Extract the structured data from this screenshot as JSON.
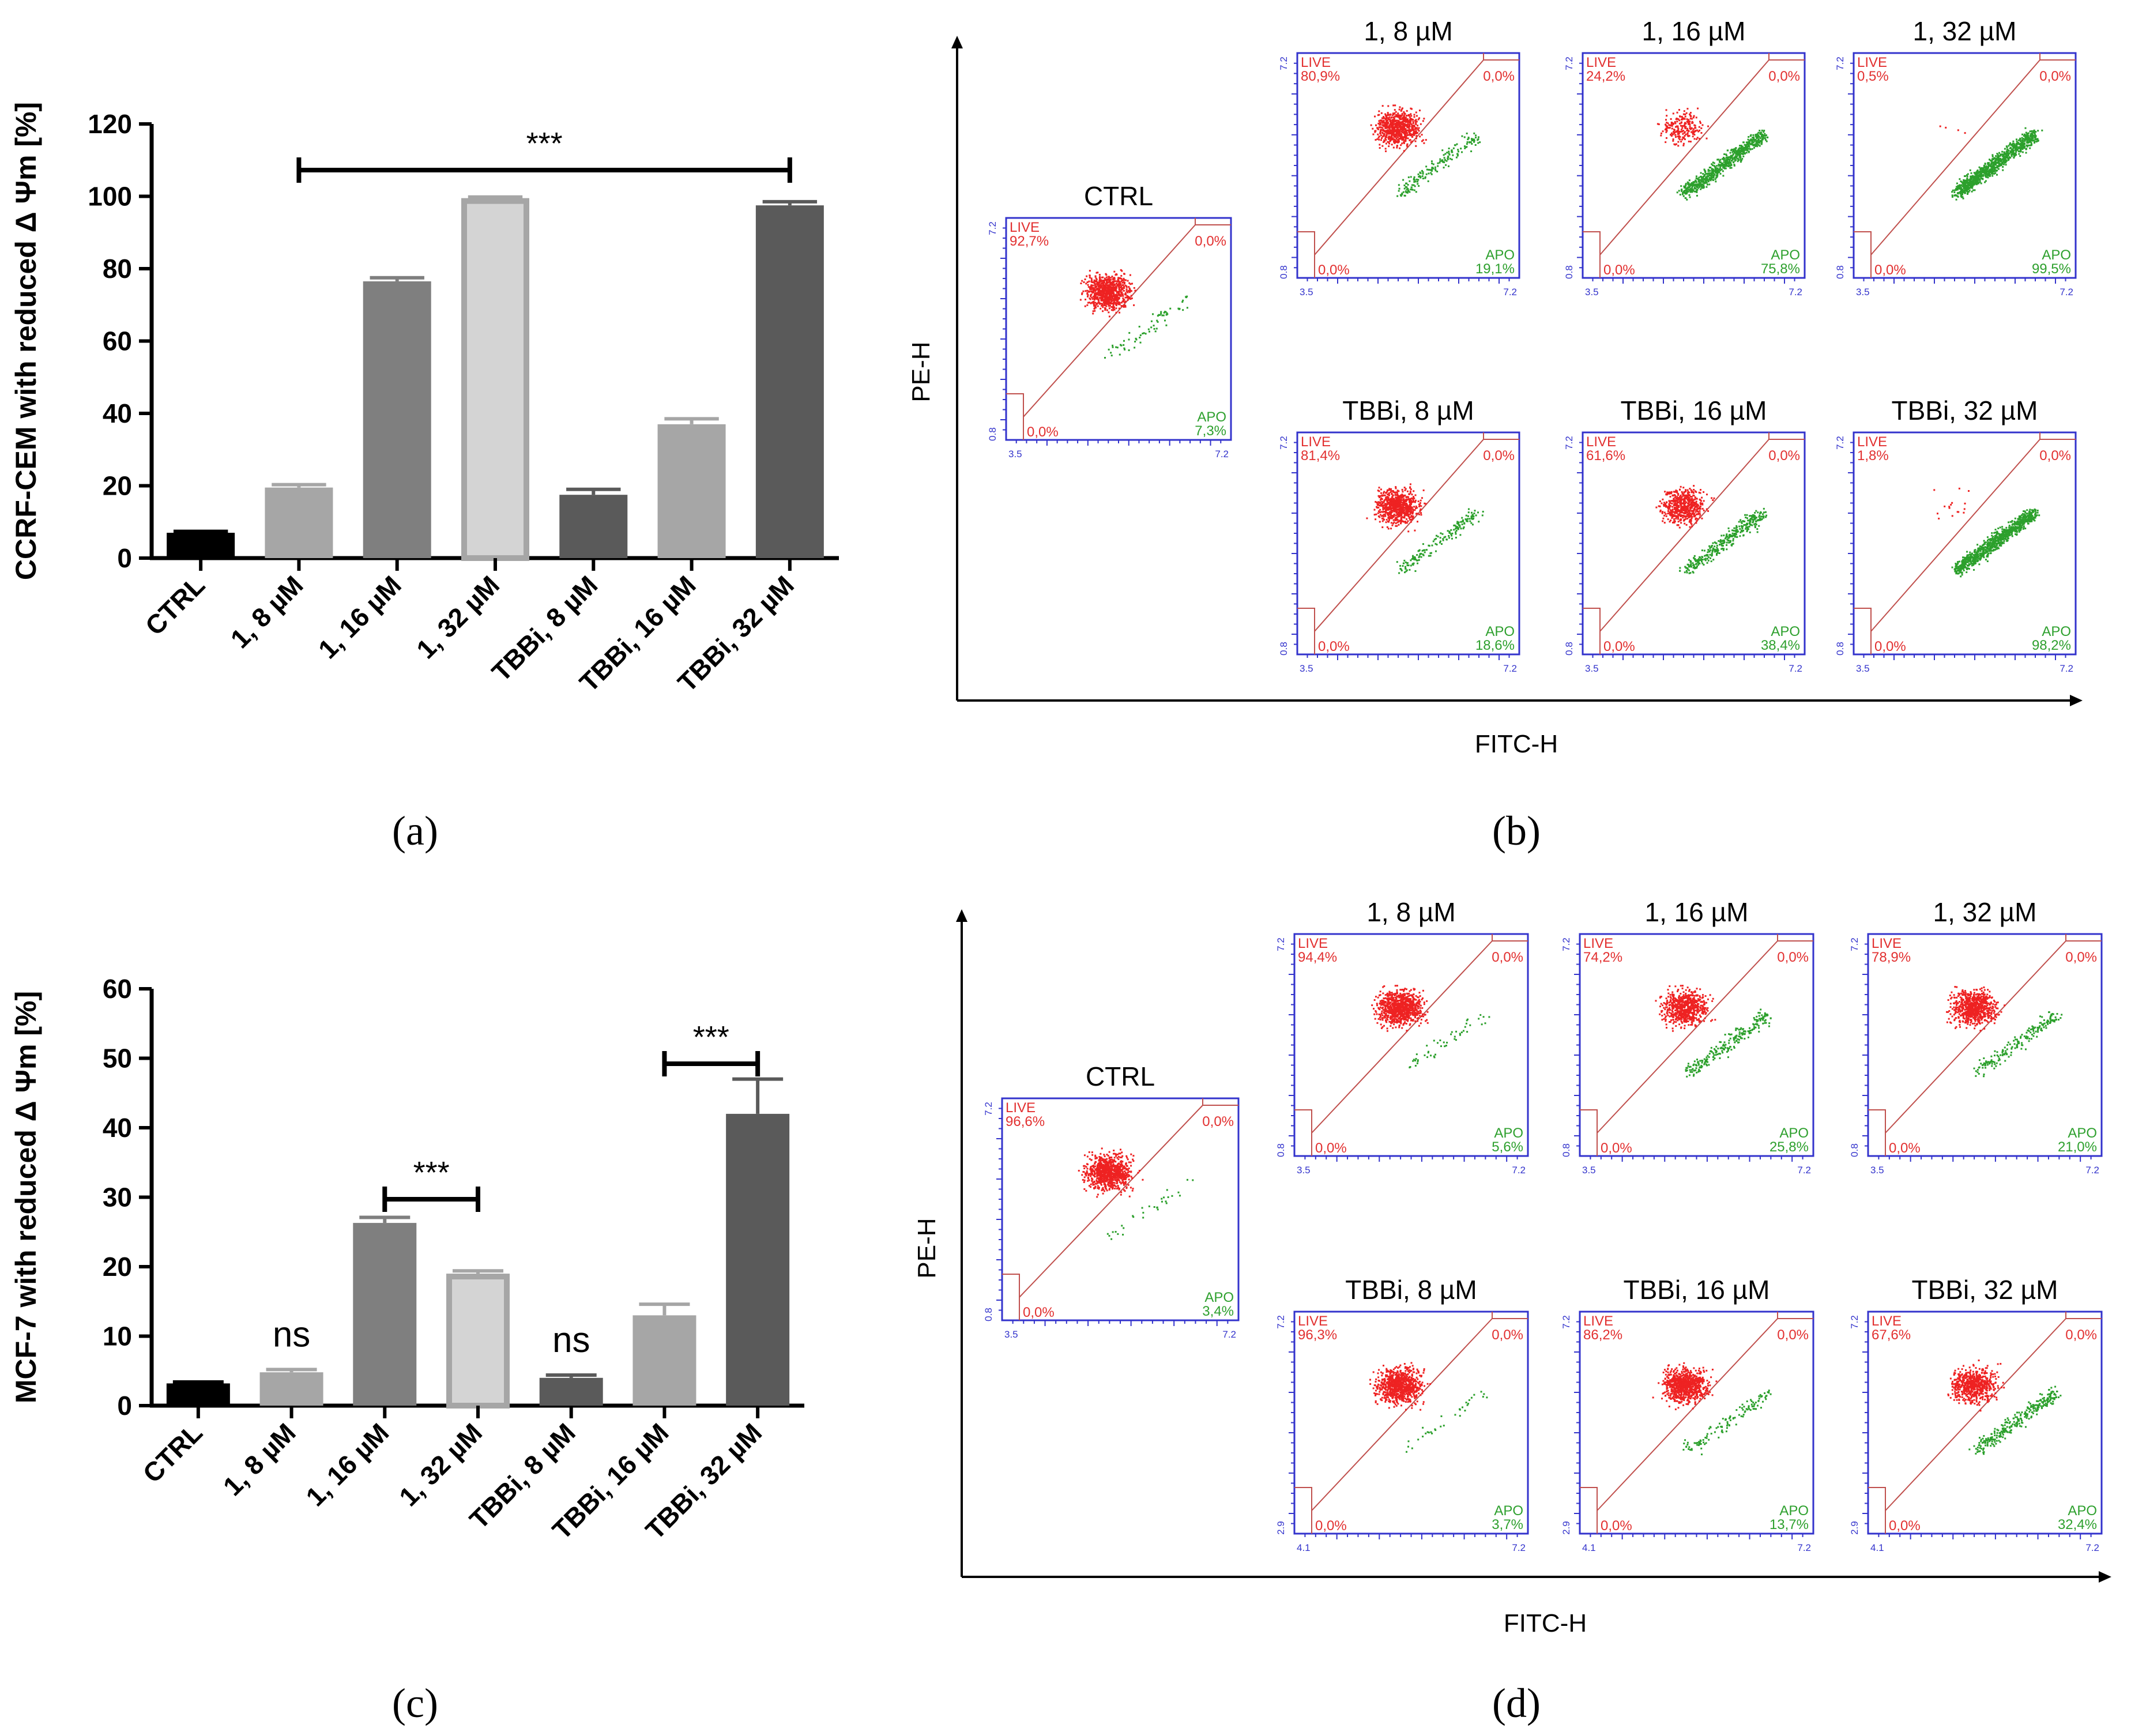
{
  "chart_data": [
    {
      "type": "bar",
      "panel": "a",
      "ylabel": "CCRF-CEM with reduced Δ Ψm [%]",
      "categories": [
        "CTRL",
        "1, 8 µM",
        "1, 16 µM",
        "1, 32 µM",
        "TBBi, 8 µM",
        "TBBi, 16 µM",
        "TBBi, 32 µM"
      ],
      "values": [
        7,
        19.5,
        76.5,
        99.5,
        17.5,
        37,
        97.5
      ],
      "errors": [
        0.4,
        0.8,
        1.0,
        0.3,
        1.5,
        1.5,
        1.0
      ],
      "colors": [
        "#000000",
        "#a6a6a6",
        "#7f7f7f",
        "#d4d4d4",
        "#5a5a5a",
        "#a6a6a6",
        "#5a5a5a"
      ],
      "ylim": [
        0,
        120
      ],
      "yticks": [
        0,
        20,
        40,
        60,
        80,
        100,
        120
      ],
      "annotations": [
        {
          "label": "***",
          "from": 1,
          "to": 6
        }
      ]
    },
    {
      "type": "bar",
      "panel": "c",
      "ylabel": "MCF-7 with reduced Δ Ψm [%]",
      "categories": [
        "CTRL",
        "1, 8 µM",
        "1, 16 µM",
        "1, 32 µM",
        "TBBi, 8 µM",
        "TBBi, 16 µM",
        "TBBi, 32 µM"
      ],
      "values": [
        3.2,
        4.8,
        26.3,
        19,
        4,
        13,
        42
      ],
      "errors": [
        0.2,
        0.4,
        0.8,
        0.4,
        0.4,
        1.6,
        5
      ],
      "colors": [
        "#000000",
        "#a6a6a6",
        "#7f7f7f",
        "#d4d4d4",
        "#5a5a5a",
        "#a6a6a6",
        "#5a5a5a"
      ],
      "ylim": [
        0,
        60
      ],
      "yticks": [
        0,
        10,
        20,
        30,
        40,
        50,
        60
      ],
      "annotations": [
        {
          "label": "***",
          "from": 2,
          "to": 3
        },
        {
          "label": "***",
          "from": 5,
          "to": 6
        },
        {
          "label": "ns",
          "over": 1
        },
        {
          "label": "ns",
          "over": 4
        }
      ]
    },
    {
      "type": "scatter",
      "panel": "b",
      "xlabel": "FITC-H",
      "ylabel": "PE-H",
      "plots": [
        {
          "title": "CTRL",
          "live": "92,7%",
          "apo": "7,3%",
          "tr": "0,0%",
          "bl": "0,0%",
          "ymin": "0.8",
          "xmin": "3.5",
          "apoFrac": 0.073
        },
        {
          "title": "1, 8 µM",
          "live": "80,9%",
          "apo": "19,1%",
          "tr": "0,0%",
          "bl": "0,0%",
          "ymin": "0.8",
          "xmin": "3.5",
          "apoFrac": 0.191
        },
        {
          "title": "1, 16 µM",
          "live": "24,2%",
          "apo": "75,8%",
          "tr": "0,0%",
          "bl": "0,0%",
          "ymin": "0.8",
          "xmin": "3.5",
          "apoFrac": 0.758
        },
        {
          "title": "1, 32 µM",
          "live": "0,5%",
          "apo": "99,5%",
          "tr": "0,0%",
          "bl": "0,0%",
          "ymin": "0.8",
          "xmin": "3.5",
          "apoFrac": 0.995
        },
        {
          "title": "TBBi, 8 µM",
          "live": "81,4%",
          "apo": "18,6%",
          "tr": "0,0%",
          "bl": "0,0%",
          "ymin": "0.8",
          "xmin": "3.5",
          "apoFrac": 0.186
        },
        {
          "title": "TBBi, 16 µM",
          "live": "61,6%",
          "apo": "38,4%",
          "tr": "0,0%",
          "bl": "0,0%",
          "ymin": "0.8",
          "xmin": "3.5",
          "apoFrac": 0.384
        },
        {
          "title": "TBBi, 32 µM",
          "live": "1,8%",
          "apo": "98,2%",
          "tr": "0,0%",
          "bl": "0,0%",
          "ymin": "0.8",
          "xmin": "3.5",
          "apoFrac": 0.982
        }
      ]
    },
    {
      "type": "scatter",
      "panel": "d",
      "xlabel": "FITC-H",
      "ylabel": "PE-H",
      "plots": [
        {
          "title": "CTRL",
          "live": "96,6%",
          "apo": "3,4%",
          "tr": "0,0%",
          "bl": "0,0%",
          "ymin": "0.8",
          "xmin": "3.5",
          "apoFrac": 0.034
        },
        {
          "title": "1, 8 µM",
          "live": "94,4%",
          "apo": "5,6%",
          "tr": "0,0%",
          "bl": "0,0%",
          "ymin": "0.8",
          "xmin": "3.5",
          "apoFrac": 0.056
        },
        {
          "title": "1, 16 µM",
          "live": "74,2%",
          "apo": "25,8%",
          "tr": "0,0%",
          "bl": "0,0%",
          "ymin": "0.8",
          "xmin": "3.5",
          "apoFrac": 0.258
        },
        {
          "title": "1, 32 µM",
          "live": "78,9%",
          "apo": "21,0%",
          "tr": "0,0%",
          "bl": "0,0%",
          "ymin": "0.8",
          "xmin": "3.5",
          "apoFrac": 0.21
        },
        {
          "title": "TBBi, 8 µM",
          "live": "96,3%",
          "apo": "3,7%",
          "tr": "0,0%",
          "bl": "0,0%",
          "ymin": "2.9",
          "xmin": "4.1",
          "apoFrac": 0.037
        },
        {
          "title": "TBBi, 16 µM",
          "live": "86,2%",
          "apo": "13,7%",
          "tr": "0,0%",
          "bl": "0,0%",
          "ymin": "2.9",
          "xmin": "4.1",
          "apoFrac": 0.137
        },
        {
          "title": "TBBi, 32 µM",
          "live": "67,6%",
          "apo": "32,4%",
          "tr": "0,0%",
          "bl": "0,0%",
          "ymin": "2.9",
          "xmin": "4.1",
          "apoFrac": 0.324
        }
      ]
    }
  ],
  "gate_labels": {
    "live": "LIVE",
    "apo": "APO",
    "ymax": "7.2",
    "xmax": "7.2"
  },
  "subfigure_labels": {
    "a": "(a)",
    "b": "(b)",
    "c": "(c)",
    "d": "(d)"
  }
}
